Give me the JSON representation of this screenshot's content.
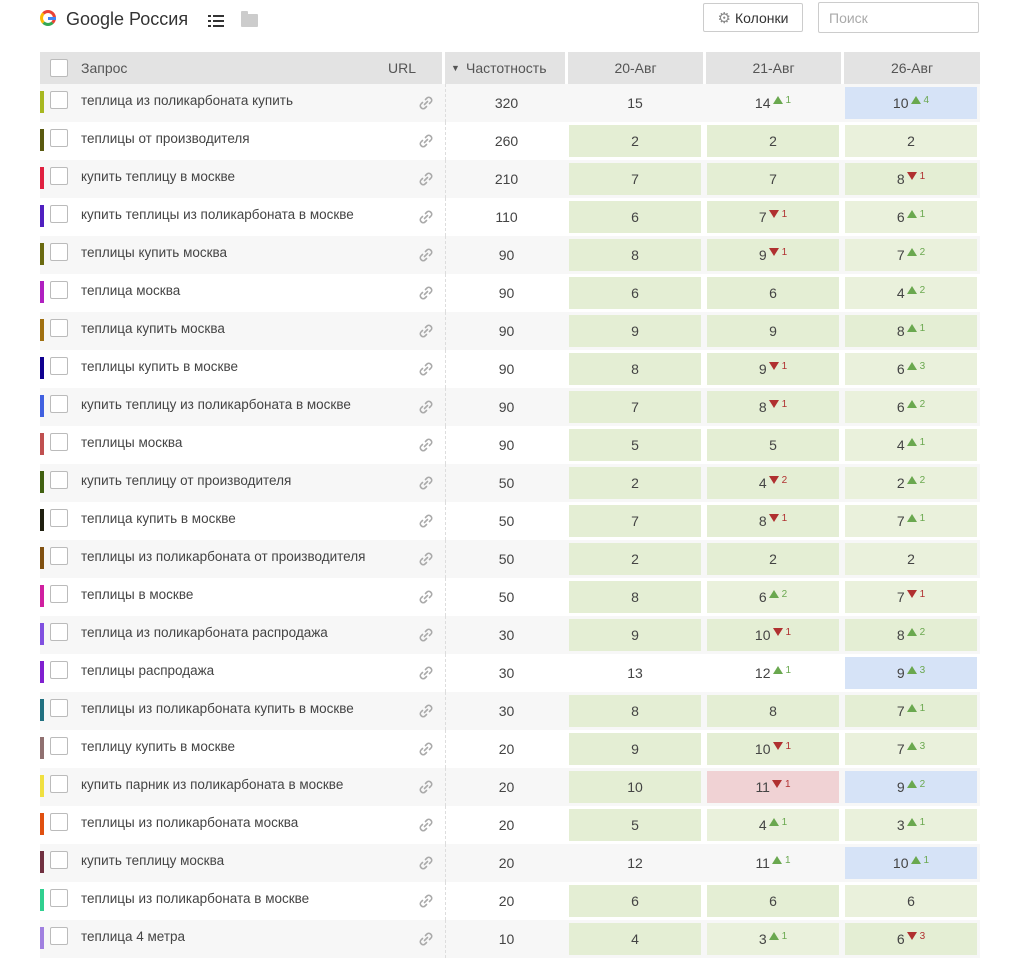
{
  "header": {
    "title": "Google Россия",
    "columns_button": "Колонки",
    "search_placeholder": "Поиск"
  },
  "table": {
    "columns": {
      "query": "Запрос",
      "url": "URL",
      "frequency": "Частотность",
      "dates": [
        "20-Авг",
        "21-Авг",
        "26-Авг"
      ]
    },
    "rows": [
      {
        "color": "#a8b820",
        "query": "теплица из поликарбоната купить",
        "freq": "320",
        "p": [
          {
            "v": "15",
            "bg": "none"
          },
          {
            "v": "14",
            "d": "up",
            "dv": "1",
            "bg": "none"
          },
          {
            "v": "10",
            "d": "up",
            "dv": "4",
            "bg": "blue"
          }
        ]
      },
      {
        "color": "#5a5a10",
        "query": "теплицы от производителя",
        "freq": "260",
        "p": [
          {
            "v": "2",
            "bg": "green"
          },
          {
            "v": "2",
            "bg": "green"
          },
          {
            "v": "2",
            "bg": "pale"
          }
        ]
      },
      {
        "color": "#e02040",
        "query": "купить теплицу в москве",
        "freq": "210",
        "p": [
          {
            "v": "7",
            "bg": "green"
          },
          {
            "v": "7",
            "bg": "green"
          },
          {
            "v": "8",
            "d": "down",
            "dv": "1",
            "bg": "green"
          }
        ]
      },
      {
        "color": "#5020c0",
        "query": "купить теплицы из поликарбоната в москве",
        "freq": "110",
        "p": [
          {
            "v": "6",
            "bg": "green"
          },
          {
            "v": "7",
            "d": "down",
            "dv": "1",
            "bg": "green"
          },
          {
            "v": "6",
            "d": "up",
            "dv": "1",
            "bg": "pale"
          }
        ]
      },
      {
        "color": "#6a6a10",
        "query": "теплицы купить москва",
        "freq": "90",
        "p": [
          {
            "v": "8",
            "bg": "green"
          },
          {
            "v": "9",
            "d": "down",
            "dv": "1",
            "bg": "green"
          },
          {
            "v": "7",
            "d": "up",
            "dv": "2",
            "bg": "pale"
          }
        ]
      },
      {
        "color": "#b020c0",
        "query": "теплица москва",
        "freq": "90",
        "p": [
          {
            "v": "6",
            "bg": "green"
          },
          {
            "v": "6",
            "bg": "green"
          },
          {
            "v": "4",
            "d": "up",
            "dv": "2",
            "bg": "pale"
          }
        ]
      },
      {
        "color": "#a07010",
        "query": "теплица купить москва",
        "freq": "90",
        "p": [
          {
            "v": "9",
            "bg": "green"
          },
          {
            "v": "9",
            "bg": "green"
          },
          {
            "v": "8",
            "d": "up",
            "dv": "1",
            "bg": "green"
          }
        ]
      },
      {
        "color": "#100090",
        "query": "теплицы купить в москве",
        "freq": "90",
        "p": [
          {
            "v": "8",
            "bg": "green"
          },
          {
            "v": "9",
            "d": "down",
            "dv": "1",
            "bg": "green"
          },
          {
            "v": "6",
            "d": "up",
            "dv": "3",
            "bg": "pale"
          }
        ]
      },
      {
        "color": "#4060e0",
        "query": "купить теплицу из поликарбоната в москве",
        "freq": "90",
        "p": [
          {
            "v": "7",
            "bg": "green"
          },
          {
            "v": "8",
            "d": "down",
            "dv": "1",
            "bg": "green"
          },
          {
            "v": "6",
            "d": "up",
            "dv": "2",
            "bg": "pale"
          }
        ]
      },
      {
        "color": "#c05050",
        "query": "теплицы москва",
        "freq": "90",
        "p": [
          {
            "v": "5",
            "bg": "green"
          },
          {
            "v": "5",
            "bg": "green"
          },
          {
            "v": "4",
            "d": "up",
            "dv": "1",
            "bg": "pale"
          }
        ]
      },
      {
        "color": "#406010",
        "query": "купить теплицу от производителя",
        "freq": "50",
        "p": [
          {
            "v": "2",
            "bg": "green"
          },
          {
            "v": "4",
            "d": "down",
            "dv": "2",
            "bg": "green"
          },
          {
            "v": "2",
            "d": "up",
            "dv": "2",
            "bg": "pale"
          }
        ]
      },
      {
        "color": "#202010",
        "query": "теплица купить в москве",
        "freq": "50",
        "p": [
          {
            "v": "7",
            "bg": "green"
          },
          {
            "v": "8",
            "d": "down",
            "dv": "1",
            "bg": "green"
          },
          {
            "v": "7",
            "d": "up",
            "dv": "1",
            "bg": "pale"
          }
        ]
      },
      {
        "color": "#805010",
        "query": "теплицы из поликарбоната от производителя",
        "freq": "50",
        "p": [
          {
            "v": "2",
            "bg": "green"
          },
          {
            "v": "2",
            "bg": "green"
          },
          {
            "v": "2",
            "bg": "pale"
          }
        ]
      },
      {
        "color": "#d020a0",
        "query": "теплицы в москве",
        "freq": "50",
        "p": [
          {
            "v": "8",
            "bg": "green"
          },
          {
            "v": "6",
            "d": "up",
            "dv": "2",
            "bg": "pale"
          },
          {
            "v": "7",
            "d": "down",
            "dv": "1",
            "bg": "pale"
          }
        ]
      },
      {
        "color": "#8050e0",
        "query": "теплица из поликарбоната распродажа",
        "freq": "30",
        "p": [
          {
            "v": "9",
            "bg": "green"
          },
          {
            "v": "10",
            "d": "down",
            "dv": "1",
            "bg": "green"
          },
          {
            "v": "8",
            "d": "up",
            "dv": "2",
            "bg": "green"
          }
        ]
      },
      {
        "color": "#8020d0",
        "query": "теплицы распродажа",
        "freq": "30",
        "p": [
          {
            "v": "13",
            "bg": "none"
          },
          {
            "v": "12",
            "d": "up",
            "dv": "1",
            "bg": "none"
          },
          {
            "v": "9",
            "d": "up",
            "dv": "3",
            "bg": "blue"
          }
        ]
      },
      {
        "color": "#207080",
        "query": "теплицы из поликарбоната купить в москве",
        "freq": "30",
        "p": [
          {
            "v": "8",
            "bg": "green"
          },
          {
            "v": "8",
            "bg": "green"
          },
          {
            "v": "7",
            "d": "up",
            "dv": "1",
            "bg": "green"
          }
        ]
      },
      {
        "color": "#907070",
        "query": "теплицу купить в москве",
        "freq": "20",
        "p": [
          {
            "v": "9",
            "bg": "green"
          },
          {
            "v": "10",
            "d": "down",
            "dv": "1",
            "bg": "green"
          },
          {
            "v": "7",
            "d": "up",
            "dv": "3",
            "bg": "pale"
          }
        ]
      },
      {
        "color": "#f0e040",
        "query": "купить парник из поликарбоната в москве",
        "freq": "20",
        "p": [
          {
            "v": "10",
            "bg": "green"
          },
          {
            "v": "11",
            "d": "down",
            "dv": "1",
            "bg": "red"
          },
          {
            "v": "9",
            "d": "up",
            "dv": "2",
            "bg": "blue"
          }
        ]
      },
      {
        "color": "#e05010",
        "query": "теплицы из поликарбоната москва",
        "freq": "20",
        "p": [
          {
            "v": "5",
            "bg": "green"
          },
          {
            "v": "4",
            "d": "up",
            "dv": "1",
            "bg": "pale"
          },
          {
            "v": "3",
            "d": "up",
            "dv": "1",
            "bg": "pale"
          }
        ]
      },
      {
        "color": "#703040",
        "query": "купить теплицу москва",
        "freq": "20",
        "p": [
          {
            "v": "12",
            "bg": "none"
          },
          {
            "v": "11",
            "d": "up",
            "dv": "1",
            "bg": "none"
          },
          {
            "v": "10",
            "d": "up",
            "dv": "1",
            "bg": "blue"
          }
        ]
      },
      {
        "color": "#30d090",
        "query": "теплицы из поликарбоната в москве",
        "freq": "20",
        "p": [
          {
            "v": "6",
            "bg": "green"
          },
          {
            "v": "6",
            "bg": "green"
          },
          {
            "v": "6",
            "bg": "pale"
          }
        ]
      },
      {
        "color": "#a080e0",
        "query": "теплица 4 метра",
        "freq": "10",
        "p": [
          {
            "v": "4",
            "bg": "green"
          },
          {
            "v": "3",
            "d": "up",
            "dv": "1",
            "bg": "pale"
          },
          {
            "v": "6",
            "d": "down",
            "dv": "3",
            "bg": "green"
          }
        ]
      }
    ]
  }
}
